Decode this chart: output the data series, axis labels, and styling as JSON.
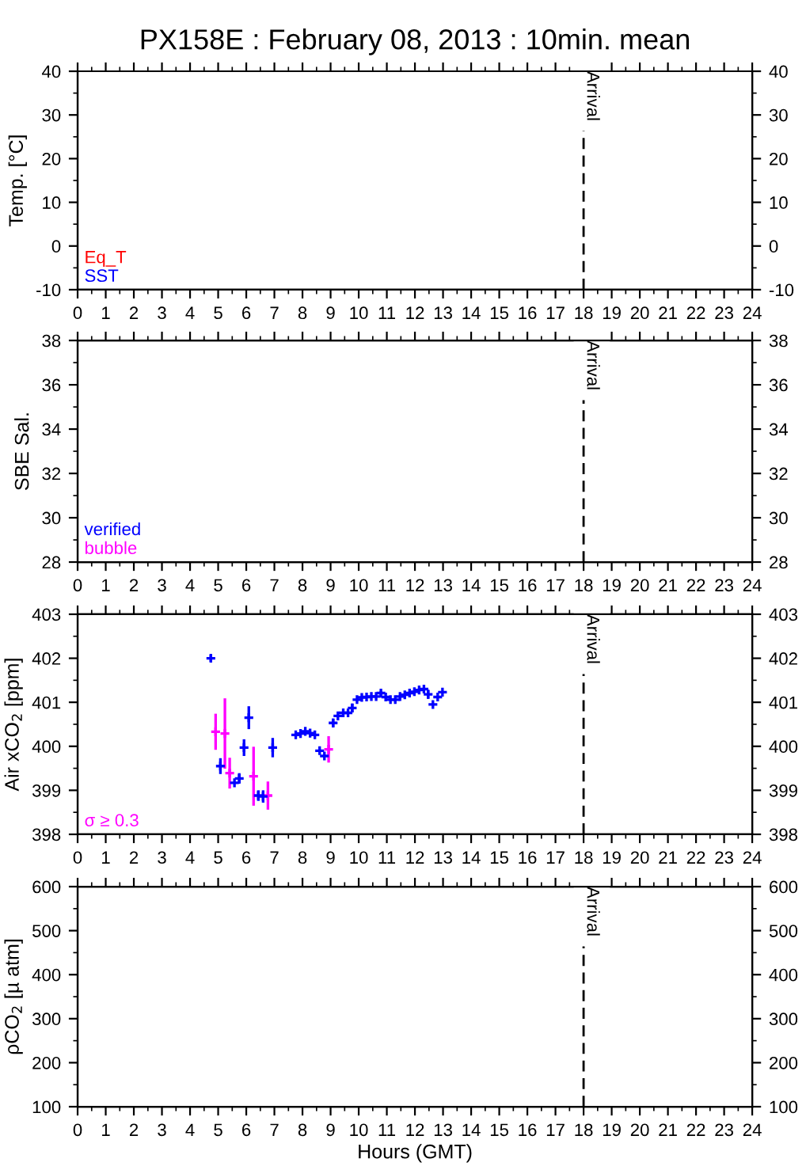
{
  "chart_data": [
    {
      "type": "scatter",
      "title": "PX158E : February 08, 2013 : 10min. mean",
      "ylabel": "Temp. [°C]",
      "xlim": [
        0,
        24
      ],
      "xticks": [
        0,
        1,
        2,
        3,
        4,
        5,
        6,
        7,
        8,
        9,
        10,
        11,
        12,
        13,
        14,
        15,
        16,
        17,
        18,
        19,
        20,
        21,
        22,
        23,
        24
      ],
      "ylim": [
        -10,
        40
      ],
      "yticks": [
        -10,
        0,
        10,
        20,
        30,
        40
      ],
      "y2lim": [
        -10,
        40
      ],
      "y2ticks": [
        -10,
        0,
        10,
        20,
        30,
        40
      ],
      "grid": false,
      "marker": "cross",
      "series": [
        {
          "name": "Eq_T",
          "color": "#ff0000",
          "x": [
            null
          ],
          "values": [
            null
          ]
        },
        {
          "name": "SST",
          "color": "#0000ff",
          "x": [
            null
          ],
          "values": [
            null
          ]
        }
      ],
      "ref_lines": [
        {
          "axis": "x",
          "value": 18,
          "label": "Arrival",
          "color": "#000000",
          "line_style": "dashed"
        }
      ]
    },
    {
      "type": "scatter",
      "ylabel": "SBE Sal.",
      "xlim": [
        0,
        24
      ],
      "xticks": [
        0,
        1,
        2,
        3,
        4,
        5,
        6,
        7,
        8,
        9,
        10,
        11,
        12,
        13,
        14,
        15,
        16,
        17,
        18,
        19,
        20,
        21,
        22,
        23,
        24
      ],
      "ylim": [
        28,
        38
      ],
      "yticks": [
        28,
        30,
        32,
        34,
        36,
        38
      ],
      "y2lim": [
        28,
        38
      ],
      "y2ticks": [
        28,
        30,
        32,
        34,
        36,
        38
      ],
      "grid": false,
      "marker": "cross",
      "series": [
        {
          "name": "verified",
          "color": "#0000ff",
          "x": [
            null
          ],
          "values": [
            null
          ]
        },
        {
          "name": "bubble",
          "color": "#ff00ff",
          "x": [
            null
          ],
          "values": [
            null
          ]
        }
      ],
      "ref_lines": [
        {
          "axis": "x",
          "value": 18,
          "label": "Arrival",
          "color": "#000000",
          "line_style": "dashed"
        }
      ]
    },
    {
      "type": "scatter",
      "ylabel": "Air xCO$_{2}$ [ppm]",
      "xlim": [
        0,
        24
      ],
      "xticks": [
        0,
        1,
        2,
        3,
        4,
        5,
        6,
        7,
        8,
        9,
        10,
        11,
        12,
        13,
        14,
        15,
        16,
        17,
        18,
        19,
        20,
        21,
        22,
        23,
        24
      ],
      "ylim": [
        398,
        403
      ],
      "yticks": [
        398,
        399,
        400,
        401,
        402,
        403
      ],
      "y2lim": [
        398,
        403
      ],
      "y2ticks": [
        398,
        399,
        400,
        401,
        402,
        403
      ],
      "grid": false,
      "marker": "cross",
      "series": [
        {
          "color": "#0000ff",
          "x": [
            4.74,
            5.08,
            5.58,
            5.75,
            5.92,
            6.09,
            6.43,
            6.6,
            6.94,
            7.76,
            7.93,
            8.1,
            8.27,
            8.44,
            8.61,
            8.78,
            9.09,
            9.26,
            9.45,
            9.62,
            9.77,
            9.94,
            10.11,
            10.28,
            10.45,
            10.62,
            10.79,
            10.96,
            11.13,
            11.3,
            11.47,
            11.64,
            11.81,
            11.98,
            12.15,
            12.32,
            12.47,
            12.64,
            12.81,
            12.98
          ],
          "values": [
            402.0,
            399.55,
            399.17,
            399.27,
            399.97,
            400.65,
            398.88,
            398.86,
            399.97,
            400.26,
            400.29,
            400.34,
            400.3,
            400.26,
            399.9,
            399.78,
            400.53,
            400.69,
            400.76,
            400.76,
            400.87,
            401.06,
            401.11,
            401.12,
            401.13,
            401.13,
            401.21,
            401.12,
            401.06,
            401.06,
            401.13,
            401.17,
            401.21,
            401.24,
            401.28,
            401.3,
            401.18,
            400.95,
            401.12,
            401.23
          ],
          "errors": [
            0.08,
            0.18,
            null,
            0.12,
            0.19,
            0.26,
            0.12,
            0.14,
            0.22,
            null,
            null,
            null,
            null,
            null,
            null,
            null,
            0.1,
            null,
            null,
            null,
            0.1,
            null,
            null,
            null,
            null,
            null,
            0.05,
            null,
            null,
            null,
            null,
            null,
            null,
            null,
            null,
            null,
            0.1,
            null,
            null,
            null
          ]
        },
        {
          "name": "σ ≥ 0.3",
          "color": "#ff00ff",
          "x": [
            4.91,
            5.24,
            5.41,
            6.26,
            6.77,
            8.93
          ],
          "values": [
            400.33,
            400.29,
            399.39,
            399.32,
            398.88,
            399.93
          ],
          "errors": [
            0.41,
            0.8,
            0.35,
            0.67,
            0.32,
            0.3
          ]
        }
      ],
      "ref_lines": [
        {
          "axis": "x",
          "value": 18,
          "label": "Arrival",
          "color": "#000000",
          "line_style": "dashed"
        }
      ]
    },
    {
      "type": "scatter",
      "ylabel": "ρCO$_{2}$ [µ atm]",
      "xlabel": "Hours (GMT)",
      "xlim": [
        0,
        24
      ],
      "xticks": [
        0,
        1,
        2,
        3,
        4,
        5,
        6,
        7,
        8,
        9,
        10,
        11,
        12,
        13,
        14,
        15,
        16,
        17,
        18,
        19,
        20,
        21,
        22,
        23,
        24
      ],
      "ylim": [
        100,
        600
      ],
      "yticks": [
        100,
        200,
        300,
        400,
        500,
        600
      ],
      "y2lim": [
        100,
        600
      ],
      "y2ticks": [
        100,
        200,
        300,
        400,
        500,
        600
      ],
      "grid": false,
      "marker": "cross",
      "ref_lines": [
        {
          "axis": "x",
          "value": 18,
          "label": "Arrival",
          "color": "#000000",
          "line_style": "dashed"
        }
      ]
    }
  ]
}
